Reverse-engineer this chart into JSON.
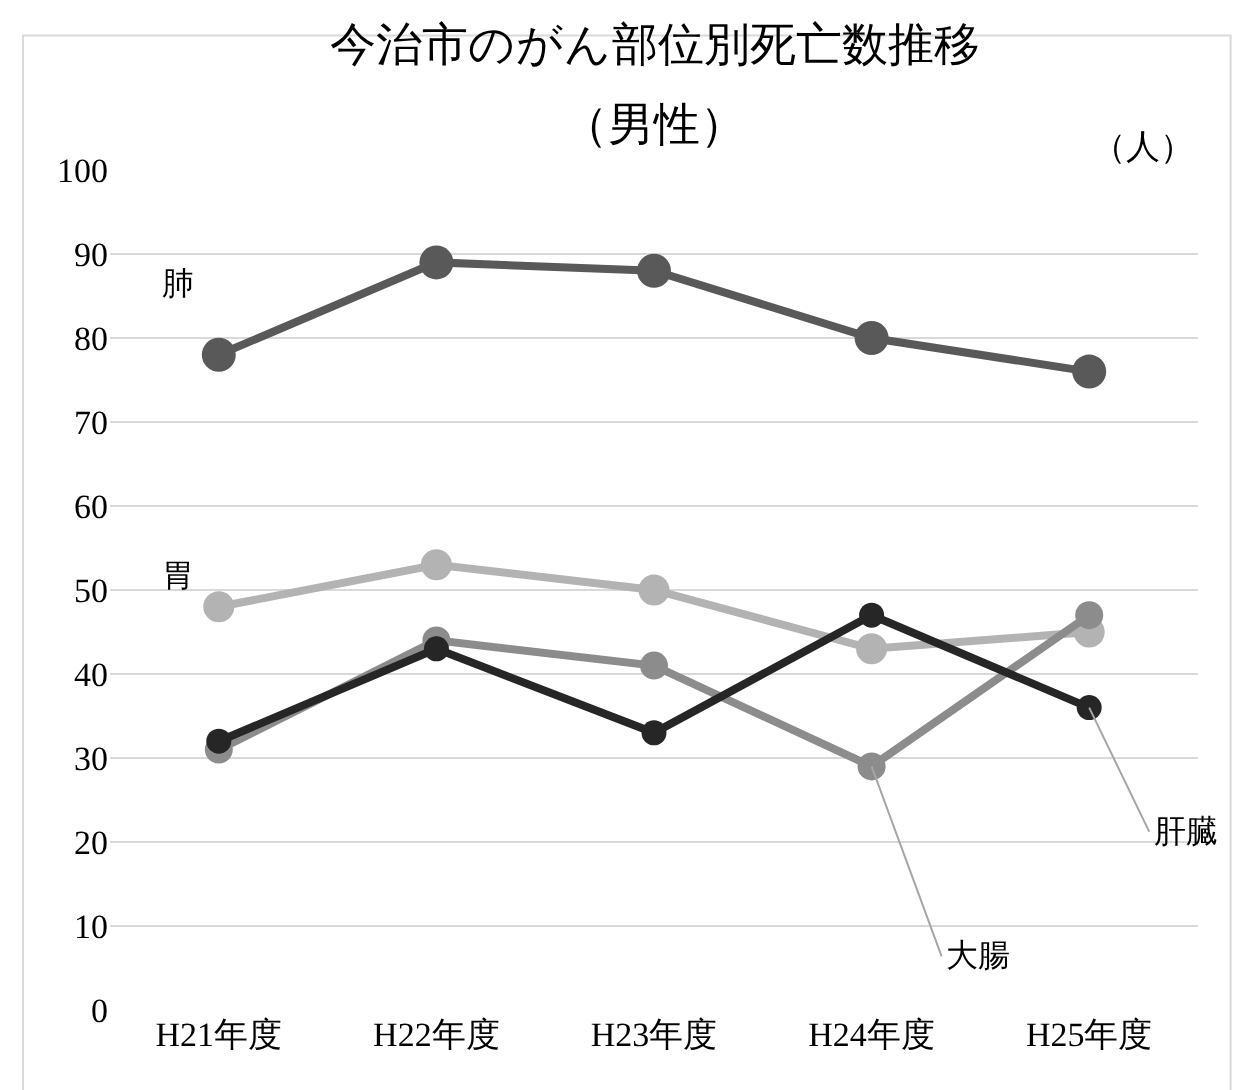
{
  "chart_data": {
    "type": "line",
    "title": "今治市のがん部位別死亡数推移",
    "subtitle": "（男性）",
    "categories": [
      "H21年度",
      "H22年度",
      "H23年度",
      "H24年度",
      "H25年度"
    ],
    "series": [
      {
        "name": "肺",
        "color": "#595959",
        "values": [
          78,
          89,
          88,
          80,
          76
        ]
      },
      {
        "name": "胃",
        "color": "#b3b3b3",
        "values": [
          48,
          53,
          50,
          43,
          45
        ]
      },
      {
        "name": "大腸",
        "color": "#8c8c8c",
        "values": [
          31,
          44,
          41,
          29,
          47
        ]
      },
      {
        "name": "肝臓",
        "color": "#262626",
        "values": [
          32,
          43,
          33,
          47,
          36
        ]
      }
    ],
    "annotations": [
      "（人）"
    ],
    "ylim": [
      0,
      100
    ],
    "yticks": [
      0,
      10,
      20,
      30,
      40,
      50,
      60,
      70,
      80,
      90,
      100
    ],
    "grid": "y",
    "legend": false,
    "marker": "circle",
    "line_style": "solid"
  }
}
